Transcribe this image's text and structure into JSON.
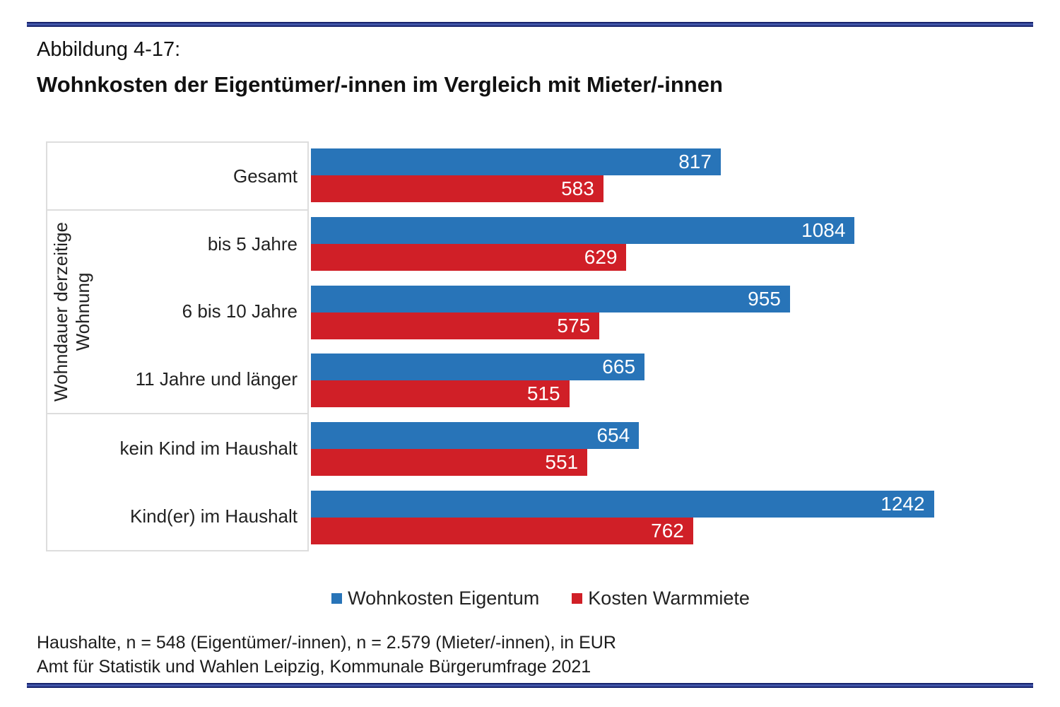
{
  "header": {
    "figure_label": "Abbildung 4-17:",
    "title": "Wohnkosten der Eigentümer/-innen im Vergleich mit Mieter/-innen"
  },
  "chart_data": {
    "type": "bar",
    "orientation": "horizontal",
    "categories": [
      "Gesamt",
      "bis 5 Jahre",
      "6 bis 10 Jahre",
      "11 Jahre und länger",
      "kein Kind im Haushalt",
      "Kind(er) im Haushalt"
    ],
    "groups": [
      {
        "label": "",
        "rows": [
          0
        ]
      },
      {
        "label": "Wohndauer derzeitige Wohnung",
        "rows": [
          1,
          2,
          3
        ]
      },
      {
        "label": "",
        "rows": [
          4,
          5
        ]
      }
    ],
    "series": [
      {
        "name": "Wohnkosten Eigentum",
        "color": "#2874B8",
        "values": [
          817,
          1084,
          955,
          665,
          654,
          1242
        ]
      },
      {
        "name": "Kosten Warmmiete",
        "color": "#D01F27",
        "values": [
          583,
          629,
          575,
          515,
          551,
          762
        ]
      }
    ],
    "xlim": [
      0,
      1437
    ],
    "unit": "EUR",
    "legend_position": "bottom",
    "value_labels": "inside-end",
    "grid": false
  },
  "footer": {
    "line1": "Haushalte, n = 548 (Eigentümer/-innen), n = 2.579 (Mieter/-innen), in EUR",
    "line2": "Amt für Statistik und Wahlen Leipzig, Kommunale Bürgerumfrage 2021"
  },
  "colors": {
    "bar_blue": "#2874B8",
    "bar_red": "#D01F27",
    "rule_navy_dark": "#18246E",
    "rule_navy_light": "#4155A8",
    "label_box_border": "#DDDDDD"
  }
}
